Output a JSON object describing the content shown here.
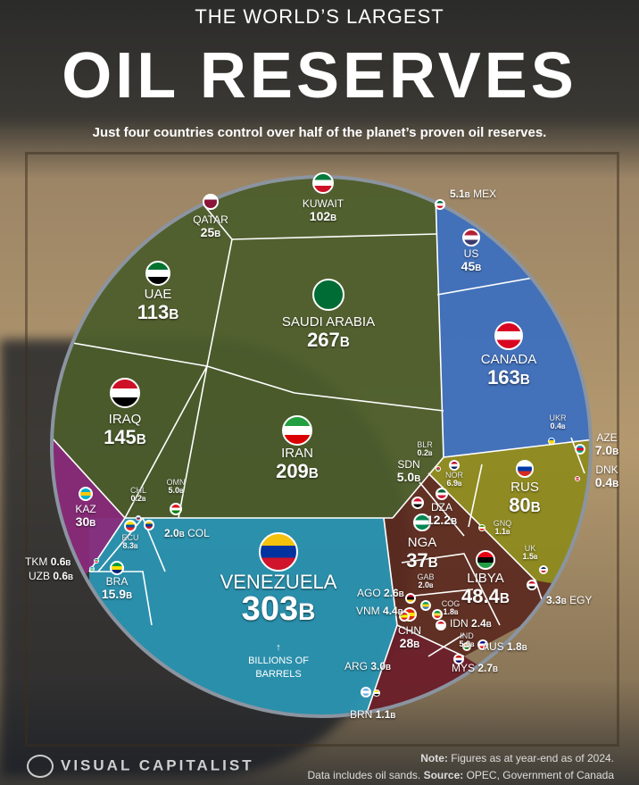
{
  "header": {
    "title_top": "THE WORLD’S LARGEST",
    "title_main": "OIL RESERVES",
    "subtitle": "Just four countries control over half of the planet’s proven oil reserves."
  },
  "chart_data": {
    "type": "voronoi-treemap",
    "unit": "Billions of barrels",
    "unit_suffix": "B",
    "unit_note": [
      "↑",
      "BILLIONS OF",
      "BARRELS"
    ],
    "groups": {
      "middle_east": "#4b5d2b",
      "north_america": "#3b6fbf",
      "europe_eurasia": "#8d8a1c",
      "africa": "#5b2a1f",
      "latin_america": "#2a97b5",
      "central_asia": "#8b2a7c",
      "asia_pacific": "#6a1c28"
    },
    "countries": [
      {
        "code": "VEN",
        "name": "VENEZUELA",
        "value": "303",
        "group": "latin_america",
        "flag": [
          "#f4c20d",
          "#0033a0",
          "#cf142b"
        ]
      },
      {
        "code": "SAU",
        "name": "SAUDI ARABIA",
        "value": "267",
        "group": "middle_east",
        "flag": [
          "#006c35",
          "#006c35",
          "#006c35"
        ]
      },
      {
        "code": "IRN",
        "name": "IRAN",
        "value": "209",
        "group": "middle_east",
        "flag": [
          "#239f40",
          "#ffffff",
          "#da0000"
        ]
      },
      {
        "code": "CAN",
        "name": "CANADA",
        "value": "163",
        "group": "north_america",
        "flag": [
          "#d80621",
          "#ffffff",
          "#d80621"
        ]
      },
      {
        "code": "IRQ",
        "name": "IRAQ",
        "value": "145",
        "group": "middle_east",
        "flag": [
          "#ce1126",
          "#ffffff",
          "#000000"
        ]
      },
      {
        "code": "ARE",
        "name": "UAE",
        "value": "113",
        "group": "middle_east",
        "flag": [
          "#00732f",
          "#ffffff",
          "#000000"
        ]
      },
      {
        "code": "KWT",
        "name": "KUWAIT",
        "value": "102",
        "group": "middle_east",
        "flag": [
          "#007a3d",
          "#ffffff",
          "#ce1126"
        ]
      },
      {
        "code": "RUS",
        "name": "RUS",
        "value": "80",
        "group": "europe_eurasia",
        "flag": [
          "#ffffff",
          "#0039a6",
          "#d52b1e"
        ]
      },
      {
        "code": "LBY",
        "name": "LIBYA",
        "value": "48.4",
        "group": "africa",
        "flag": [
          "#e70013",
          "#000000",
          "#239e46"
        ]
      },
      {
        "code": "USA",
        "name": "US",
        "value": "45",
        "group": "north_america",
        "flag": [
          "#b22234",
          "#ffffff",
          "#3c3b6e"
        ]
      },
      {
        "code": "NGA",
        "name": "NGA",
        "value": "37",
        "group": "africa",
        "flag": [
          "#008751",
          "#ffffff",
          "#008751"
        ]
      },
      {
        "code": "KAZ",
        "name": "KAZ",
        "value": "30",
        "group": "central_asia",
        "flag": [
          "#00afca",
          "#fec50c",
          "#00afca"
        ]
      },
      {
        "code": "CHN",
        "name": "CHN",
        "value": "28",
        "group": "asia_pacific",
        "flag": [
          "#de2910",
          "#ffde00",
          "#de2910"
        ]
      },
      {
        "code": "QAT",
        "name": "QATAR",
        "value": "25",
        "group": "middle_east",
        "flag": [
          "#ffffff",
          "#8a1538",
          "#8a1538"
        ]
      },
      {
        "code": "BRA",
        "name": "BRA",
        "value": "15.9",
        "group": "latin_america",
        "flag": [
          "#009c3b",
          "#ffdf00",
          "#002776"
        ]
      },
      {
        "code": "DZA",
        "name": "DZA",
        "value": "12.2",
        "group": "africa",
        "flag": [
          "#006233",
          "#ffffff",
          "#d21034"
        ]
      },
      {
        "code": "ECU",
        "name": "ECU",
        "value": "8.3",
        "group": "latin_america",
        "flag": [
          "#ffdd00",
          "#034ea2",
          "#ed1c24"
        ]
      },
      {
        "code": "AZE",
        "name": "AZE",
        "value": "7.0",
        "group": "europe_eurasia",
        "flag": [
          "#0092bc",
          "#e4002b",
          "#00af66"
        ]
      },
      {
        "code": "NOR",
        "name": "NOR",
        "value": "6.9",
        "group": "europe_eurasia",
        "flag": [
          "#ba0c2f",
          "#ffffff",
          "#00205b"
        ]
      },
      {
        "code": "MEX",
        "name": "MEX",
        "value": "5.1",
        "group": "north_america",
        "flag": [
          "#006847",
          "#ffffff",
          "#ce1126"
        ]
      },
      {
        "code": "SDN",
        "name": "SDN",
        "value": "5.0",
        "group": "africa",
        "flag": [
          "#d21034",
          "#ffffff",
          "#000000"
        ]
      },
      {
        "code": "OMN",
        "name": "OMN",
        "value": "5.0",
        "group": "middle_east",
        "flag": [
          "#db161b",
          "#ffffff",
          "#008000"
        ]
      },
      {
        "code": "IND",
        "name": "IND",
        "value": "5.0",
        "group": "asia_pacific",
        "flag": [
          "#ff9933",
          "#ffffff",
          "#138808"
        ]
      },
      {
        "code": "VNM",
        "name": "VNM",
        "value": "4.4",
        "group": "asia_pacific",
        "flag": [
          "#da251d",
          "#ffff00",
          "#da251d"
        ]
      },
      {
        "code": "EGY",
        "name": "EGY",
        "value": "3.3",
        "group": "africa",
        "flag": [
          "#ce1126",
          "#ffffff",
          "#000000"
        ]
      },
      {
        "code": "ARG",
        "name": "ARG",
        "value": "3.0",
        "group": "latin_america",
        "flag": [
          "#74acdf",
          "#ffffff",
          "#74acdf"
        ]
      },
      {
        "code": "MYS",
        "name": "MYS",
        "value": "2.7",
        "group": "asia_pacific",
        "flag": [
          "#cc0001",
          "#ffffff",
          "#010066"
        ]
      },
      {
        "code": "AGO",
        "name": "AGO",
        "value": "2.6",
        "group": "africa",
        "flag": [
          "#cc092f",
          "#000000",
          "#ffcb00"
        ]
      },
      {
        "code": "IDN",
        "name": "IDN",
        "value": "2.4",
        "group": "asia_pacific",
        "flag": [
          "#ce1126",
          "#ffffff",
          "#ffffff"
        ]
      },
      {
        "code": "GAB",
        "name": "GAB",
        "value": "2.0",
        "group": "africa",
        "flag": [
          "#009e60",
          "#fcd116",
          "#3a75c4"
        ]
      },
      {
        "code": "COL",
        "name": "COL",
        "value": "2.0",
        "group": "latin_america",
        "flag": [
          "#fcd116",
          "#003893",
          "#ce1126"
        ]
      },
      {
        "code": "AUS",
        "name": "AUS",
        "value": "1.8",
        "group": "asia_pacific",
        "flag": [
          "#00008b",
          "#ffffff",
          "#ff0000"
        ]
      },
      {
        "code": "COG",
        "name": "COG",
        "value": "1.8",
        "group": "africa",
        "flag": [
          "#009543",
          "#fbde4a",
          "#dc241f"
        ]
      },
      {
        "code": "GBR",
        "name": "UK",
        "value": "1.5",
        "group": "europe_eurasia",
        "flag": [
          "#012169",
          "#ffffff",
          "#c8102e"
        ]
      },
      {
        "code": "GNQ",
        "name": "GNQ",
        "value": "1.1",
        "group": "africa",
        "flag": [
          "#3e9a00",
          "#ffffff",
          "#e32118"
        ]
      },
      {
        "code": "BRN",
        "name": "BRN",
        "value": "1.1",
        "group": "asia_pacific",
        "flag": [
          "#f7e017",
          "#ffffff",
          "#000000"
        ]
      },
      {
        "code": "TKM",
        "name": "TKM",
        "value": "0.6",
        "group": "central_asia",
        "flag": [
          "#00843d",
          "#ffffff",
          "#d22630"
        ]
      },
      {
        "code": "UZB",
        "name": "UZB",
        "value": "0.6",
        "group": "central_asia",
        "flag": [
          "#0099b5",
          "#ffffff",
          "#1eb53a"
        ]
      },
      {
        "code": "UKR",
        "name": "UKR",
        "value": "0.4",
        "group": "europe_eurasia",
        "flag": [
          "#0057b7",
          "#ffd700",
          "#ffd700"
        ]
      },
      {
        "code": "DNK",
        "name": "DNK",
        "value": "0.4",
        "group": "europe_eurasia",
        "flag": [
          "#c8102e",
          "#ffffff",
          "#c8102e"
        ]
      },
      {
        "code": "BLR",
        "name": "BLR",
        "value": "0.2",
        "group": "europe_eurasia",
        "flag": [
          "#c8313e",
          "#c8313e",
          "#4aa657"
        ]
      },
      {
        "code": "CHL",
        "name": "CHL",
        "value": "0.2",
        "group": "latin_america",
        "flag": [
          "#ffffff",
          "#0039a6",
          "#d52b1e"
        ]
      }
    ]
  },
  "footer": {
    "brand": "VISUAL CAPITALIST",
    "note_label": "Note:",
    "note_text": " Figures as at year-end as of 2024.",
    "line2": "Data includes oil sands. ",
    "source_label": "Source:",
    "source_text": " OPEC, Government of Canada"
  }
}
